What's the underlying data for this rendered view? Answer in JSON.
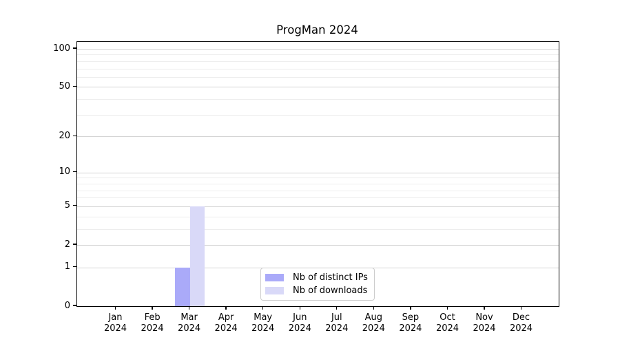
{
  "chart_data": {
    "type": "bar",
    "title": "ProgMan 2024",
    "categories": [
      "Jan 2024",
      "Feb 2024",
      "Mar 2024",
      "Apr 2024",
      "May 2024",
      "Jun 2024",
      "Jul 2024",
      "Aug 2024",
      "Sep 2024",
      "Oct 2024",
      "Nov 2024",
      "Dec 2024"
    ],
    "series": [
      {
        "name": "Nb of distinct IPs",
        "color": "#aaaaf9",
        "values": [
          0,
          0,
          1,
          0,
          0,
          0,
          0,
          0,
          0,
          0,
          0,
          0
        ]
      },
      {
        "name": "Nb of downloads",
        "color": "#d9d9f8",
        "values": [
          0,
          0,
          5,
          0,
          0,
          0,
          0,
          0,
          0,
          0,
          0,
          0
        ]
      }
    ],
    "xlabel": "",
    "ylabel": "",
    "y_axis": {
      "scale": "log10(1+y)",
      "tick_values": [
        0,
        1,
        2,
        5,
        10,
        20,
        50,
        100
      ],
      "minor_grid_values": [
        3,
        4,
        6,
        7,
        8,
        9,
        30,
        40,
        60,
        70,
        80,
        90
      ],
      "ylim": [
        0,
        113
      ]
    },
    "grid": {
      "major_color": "#d4d4d4",
      "minor_color": "#ededed",
      "visible": true
    },
    "legend": {
      "position": "lower-center",
      "border_color": "#cccccc"
    },
    "colors": {
      "axis": "#000000",
      "background": "#ffffff"
    }
  }
}
